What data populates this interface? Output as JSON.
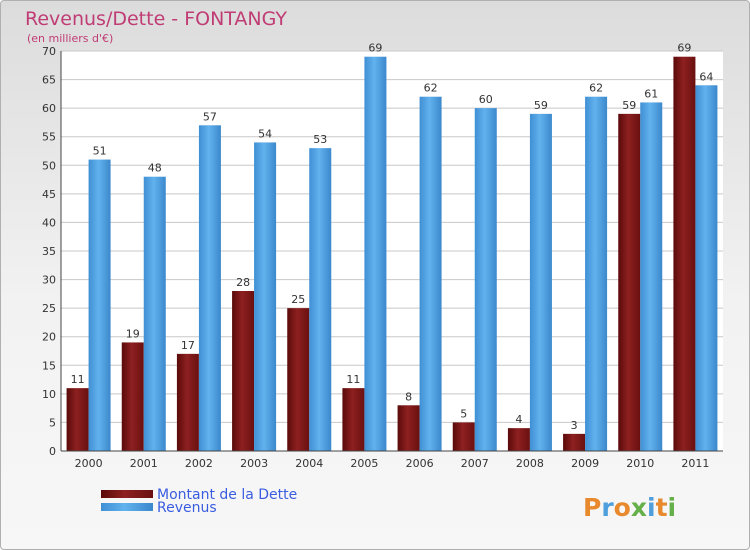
{
  "chart_data": {
    "type": "bar",
    "title": "Revenus/Dette - FONTANGY",
    "subtitle": "(en milliers d'€)",
    "categories": [
      "2000",
      "2001",
      "2002",
      "2003",
      "2004",
      "2005",
      "2006",
      "2007",
      "2008",
      "2009",
      "2010",
      "2011"
    ],
    "series": [
      {
        "name": "Montant de la Dette",
        "values": [
          11,
          19,
          17,
          28,
          25,
          11,
          8,
          5,
          4,
          3,
          59,
          69
        ],
        "color": "#7a1414"
      },
      {
        "name": "Revenus",
        "values": [
          51,
          48,
          57,
          54,
          53,
          69,
          62,
          60,
          59,
          62,
          61,
          64
        ],
        "color": "#4a9fe0"
      }
    ],
    "ylim": [
      0,
      70
    ],
    "yticks": [
      0,
      5,
      10,
      15,
      20,
      25,
      30,
      35,
      40,
      45,
      50,
      55,
      60,
      65,
      70
    ],
    "grid": true,
    "legend_position": "bottom-left",
    "title_color": "#c03c74"
  },
  "logo": {
    "text": "Proxiti"
  }
}
